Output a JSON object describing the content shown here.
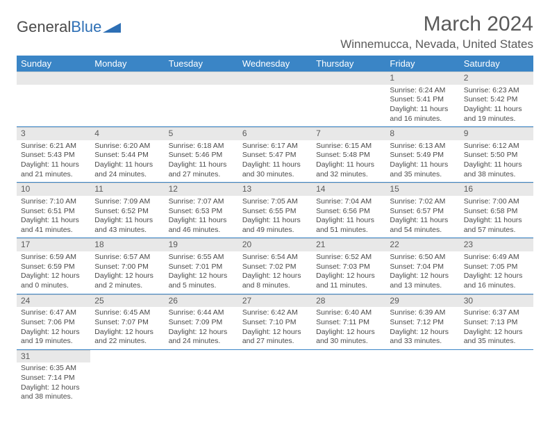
{
  "logo": {
    "word1": "General",
    "word2": "Blue"
  },
  "title": "March 2024",
  "location": "Winnemucca, Nevada, United States",
  "colors": {
    "header_bg": "#3a85c6",
    "header_text": "#ffffff",
    "daynum_bg": "#e8e8e8",
    "row_border": "#3a85c6",
    "text": "#4a4a4a",
    "logo_blue": "#2d6fb5"
  },
  "weekdays": [
    "Sunday",
    "Monday",
    "Tuesday",
    "Wednesday",
    "Thursday",
    "Friday",
    "Saturday"
  ],
  "grid": [
    [
      null,
      null,
      null,
      null,
      null,
      {
        "n": "1",
        "sr": "6:24 AM",
        "ss": "5:41 PM",
        "dl": "11 hours and 16 minutes."
      },
      {
        "n": "2",
        "sr": "6:23 AM",
        "ss": "5:42 PM",
        "dl": "11 hours and 19 minutes."
      }
    ],
    [
      {
        "n": "3",
        "sr": "6:21 AM",
        "ss": "5:43 PM",
        "dl": "11 hours and 21 minutes."
      },
      {
        "n": "4",
        "sr": "6:20 AM",
        "ss": "5:44 PM",
        "dl": "11 hours and 24 minutes."
      },
      {
        "n": "5",
        "sr": "6:18 AM",
        "ss": "5:46 PM",
        "dl": "11 hours and 27 minutes."
      },
      {
        "n": "6",
        "sr": "6:17 AM",
        "ss": "5:47 PM",
        "dl": "11 hours and 30 minutes."
      },
      {
        "n": "7",
        "sr": "6:15 AM",
        "ss": "5:48 PM",
        "dl": "11 hours and 32 minutes."
      },
      {
        "n": "8",
        "sr": "6:13 AM",
        "ss": "5:49 PM",
        "dl": "11 hours and 35 minutes."
      },
      {
        "n": "9",
        "sr": "6:12 AM",
        "ss": "5:50 PM",
        "dl": "11 hours and 38 minutes."
      }
    ],
    [
      {
        "n": "10",
        "sr": "7:10 AM",
        "ss": "6:51 PM",
        "dl": "11 hours and 41 minutes."
      },
      {
        "n": "11",
        "sr": "7:09 AM",
        "ss": "6:52 PM",
        "dl": "11 hours and 43 minutes."
      },
      {
        "n": "12",
        "sr": "7:07 AM",
        "ss": "6:53 PM",
        "dl": "11 hours and 46 minutes."
      },
      {
        "n": "13",
        "sr": "7:05 AM",
        "ss": "6:55 PM",
        "dl": "11 hours and 49 minutes."
      },
      {
        "n": "14",
        "sr": "7:04 AM",
        "ss": "6:56 PM",
        "dl": "11 hours and 51 minutes."
      },
      {
        "n": "15",
        "sr": "7:02 AM",
        "ss": "6:57 PM",
        "dl": "11 hours and 54 minutes."
      },
      {
        "n": "16",
        "sr": "7:00 AM",
        "ss": "6:58 PM",
        "dl": "11 hours and 57 minutes."
      }
    ],
    [
      {
        "n": "17",
        "sr": "6:59 AM",
        "ss": "6:59 PM",
        "dl": "12 hours and 0 minutes."
      },
      {
        "n": "18",
        "sr": "6:57 AM",
        "ss": "7:00 PM",
        "dl": "12 hours and 2 minutes."
      },
      {
        "n": "19",
        "sr": "6:55 AM",
        "ss": "7:01 PM",
        "dl": "12 hours and 5 minutes."
      },
      {
        "n": "20",
        "sr": "6:54 AM",
        "ss": "7:02 PM",
        "dl": "12 hours and 8 minutes."
      },
      {
        "n": "21",
        "sr": "6:52 AM",
        "ss": "7:03 PM",
        "dl": "12 hours and 11 minutes."
      },
      {
        "n": "22",
        "sr": "6:50 AM",
        "ss": "7:04 PM",
        "dl": "12 hours and 13 minutes."
      },
      {
        "n": "23",
        "sr": "6:49 AM",
        "ss": "7:05 PM",
        "dl": "12 hours and 16 minutes."
      }
    ],
    [
      {
        "n": "24",
        "sr": "6:47 AM",
        "ss": "7:06 PM",
        "dl": "12 hours and 19 minutes."
      },
      {
        "n": "25",
        "sr": "6:45 AM",
        "ss": "7:07 PM",
        "dl": "12 hours and 22 minutes."
      },
      {
        "n": "26",
        "sr": "6:44 AM",
        "ss": "7:09 PM",
        "dl": "12 hours and 24 minutes."
      },
      {
        "n": "27",
        "sr": "6:42 AM",
        "ss": "7:10 PM",
        "dl": "12 hours and 27 minutes."
      },
      {
        "n": "28",
        "sr": "6:40 AM",
        "ss": "7:11 PM",
        "dl": "12 hours and 30 minutes."
      },
      {
        "n": "29",
        "sr": "6:39 AM",
        "ss": "7:12 PM",
        "dl": "12 hours and 33 minutes."
      },
      {
        "n": "30",
        "sr": "6:37 AM",
        "ss": "7:13 PM",
        "dl": "12 hours and 35 minutes."
      }
    ],
    [
      {
        "n": "31",
        "sr": "6:35 AM",
        "ss": "7:14 PM",
        "dl": "12 hours and 38 minutes."
      },
      null,
      null,
      null,
      null,
      null,
      null
    ]
  ],
  "labels": {
    "sunrise": "Sunrise:",
    "sunset": "Sunset:",
    "daylight": "Daylight:"
  }
}
